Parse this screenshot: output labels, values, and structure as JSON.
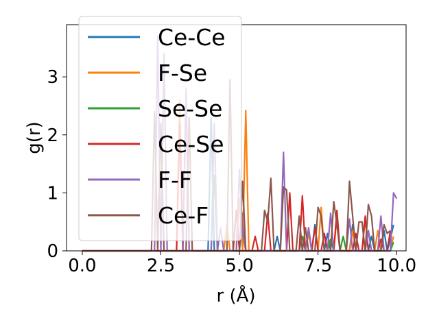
{
  "chart_data": {
    "type": "line",
    "xlabel": "r (Å)",
    "ylabel": "g(r)",
    "xlim": [
      -0.5,
      10.3
    ],
    "ylim": [
      0,
      3.9
    ],
    "xticks": [
      "0.0",
      "2.5",
      "5.0",
      "7.5",
      "10.0"
    ],
    "yticks": [
      "0",
      "1",
      "2",
      "3"
    ],
    "legend_position": "upper-left",
    "series": [
      {
        "name": "Ce-Ce",
        "color": "#1f77b4",
        "points": [
          [
            0,
            0
          ],
          [
            4.0,
            0
          ],
          [
            4.1,
            2.3
          ],
          [
            4.2,
            0
          ],
          [
            5.0,
            0
          ],
          [
            5.1,
            0.65
          ],
          [
            5.2,
            0
          ],
          [
            6.1,
            0
          ],
          [
            6.2,
            0.25
          ],
          [
            6.3,
            0
          ],
          [
            7.3,
            0
          ],
          [
            7.4,
            0.45
          ],
          [
            7.5,
            0
          ],
          [
            7.7,
            0
          ],
          [
            7.8,
            0.3
          ],
          [
            7.9,
            0
          ],
          [
            8.5,
            0
          ],
          [
            8.6,
            0.45
          ],
          [
            8.7,
            0
          ],
          [
            9.1,
            0
          ],
          [
            9.2,
            0.25
          ],
          [
            9.3,
            0
          ],
          [
            9.5,
            0
          ],
          [
            9.6,
            0.35
          ],
          [
            9.7,
            0
          ],
          [
            9.8,
            0.2
          ],
          [
            9.9,
            0.45
          ]
        ]
      },
      {
        "name": "F-Se",
        "color": "#ff7f0e",
        "points": [
          [
            0,
            0
          ],
          [
            3.0,
            0
          ],
          [
            3.1,
            2.6
          ],
          [
            3.2,
            0
          ],
          [
            3.3,
            2.8
          ],
          [
            3.4,
            0
          ],
          [
            4.5,
            0
          ],
          [
            4.6,
            0.45
          ],
          [
            4.7,
            0
          ],
          [
            4.9,
            0
          ],
          [
            5.0,
            0.9
          ],
          [
            5.1,
            0
          ],
          [
            5.2,
            2.42
          ],
          [
            5.3,
            0
          ],
          [
            7.1,
            0
          ],
          [
            7.2,
            0.3
          ],
          [
            7.3,
            0
          ],
          [
            7.5,
            0
          ],
          [
            7.6,
            0.75
          ],
          [
            7.7,
            0
          ],
          [
            8.0,
            0
          ],
          [
            8.1,
            0.6
          ],
          [
            8.2,
            0
          ],
          [
            8.5,
            0
          ],
          [
            8.6,
            0.35
          ],
          [
            8.7,
            0
          ],
          [
            8.9,
            0
          ],
          [
            9.0,
            0.55
          ],
          [
            9.1,
            0
          ],
          [
            9.3,
            0
          ],
          [
            9.4,
            0.35
          ],
          [
            9.5,
            0
          ],
          [
            9.8,
            0
          ],
          [
            9.9,
            0.25
          ]
        ]
      },
      {
        "name": "Se-Se",
        "color": "#2ca02c",
        "points": [
          [
            0,
            0
          ],
          [
            4.1,
            0
          ],
          [
            4.2,
            1.3
          ],
          [
            4.3,
            0
          ],
          [
            6.9,
            0
          ],
          [
            7.0,
            0.25
          ],
          [
            7.1,
            0
          ],
          [
            7.8,
            0
          ],
          [
            7.9,
            0.2
          ],
          [
            8.0,
            0
          ],
          [
            8.2,
            0
          ],
          [
            8.3,
            0.25
          ],
          [
            8.4,
            0
          ],
          [
            9.0,
            0
          ],
          [
            9.1,
            0.35
          ],
          [
            9.2,
            0
          ],
          [
            9.8,
            0
          ],
          [
            9.9,
            0.15
          ]
        ]
      },
      {
        "name": "Ce-Se",
        "color": "#d62728",
        "points": [
          [
            0,
            0
          ],
          [
            3.0,
            0
          ],
          [
            3.1,
            2.2
          ],
          [
            3.2,
            0
          ],
          [
            4.8,
            0
          ],
          [
            4.9,
            0.7
          ],
          [
            5.0,
            0
          ],
          [
            5.4,
            0
          ],
          [
            5.5,
            0.25
          ],
          [
            5.6,
            0
          ],
          [
            5.8,
            0
          ],
          [
            5.9,
            0.65
          ],
          [
            6.0,
            0
          ],
          [
            6.5,
            0
          ],
          [
            6.6,
            1.0
          ],
          [
            6.7,
            0
          ],
          [
            6.9,
            0
          ],
          [
            7.0,
            0.95
          ],
          [
            7.1,
            0
          ],
          [
            7.3,
            0
          ],
          [
            7.4,
            0.4
          ],
          [
            7.5,
            0
          ],
          [
            7.6,
            0
          ],
          [
            7.7,
            0.3
          ],
          [
            7.8,
            0
          ],
          [
            8.0,
            0
          ],
          [
            8.1,
            0.7
          ],
          [
            8.2,
            0
          ],
          [
            8.6,
            0
          ],
          [
            8.7,
            0.3
          ],
          [
            8.8,
            0
          ],
          [
            8.9,
            0
          ],
          [
            9.0,
            0.6
          ],
          [
            9.1,
            0
          ],
          [
            9.4,
            0
          ],
          [
            9.5,
            0.2
          ],
          [
            9.6,
            0
          ],
          [
            9.7,
            0
          ],
          [
            9.8,
            0.35
          ]
        ]
      },
      {
        "name": "F-F",
        "color": "#9467bd",
        "points": [
          [
            0,
            0
          ],
          [
            2.3,
            0
          ],
          [
            2.4,
            3.7
          ],
          [
            2.5,
            0
          ],
          [
            2.6,
            3.4
          ],
          [
            2.7,
            0
          ],
          [
            3.2,
            0
          ],
          [
            3.3,
            2.7
          ],
          [
            3.4,
            0
          ],
          [
            4.1,
            0
          ],
          [
            4.2,
            2.2
          ],
          [
            4.3,
            0
          ],
          [
            4.4,
            0.4
          ],
          [
            4.5,
            0
          ],
          [
            4.9,
            0
          ],
          [
            5.0,
            1.4
          ],
          [
            5.1,
            0.3
          ],
          [
            5.2,
            0
          ],
          [
            6.3,
            0
          ],
          [
            6.4,
            1.7
          ],
          [
            6.5,
            0
          ],
          [
            7.1,
            0
          ],
          [
            7.2,
            0.4
          ],
          [
            7.3,
            0
          ],
          [
            7.8,
            0
          ],
          [
            7.9,
            0.65
          ],
          [
            8.0,
            0
          ],
          [
            8.4,
            0
          ],
          [
            8.5,
            0.55
          ],
          [
            8.6,
            0
          ],
          [
            9.0,
            0
          ],
          [
            9.1,
            0.35
          ],
          [
            9.2,
            0
          ],
          [
            9.4,
            0
          ],
          [
            9.5,
            0.6
          ],
          [
            9.6,
            0
          ],
          [
            9.8,
            0
          ],
          [
            9.9,
            1.0
          ],
          [
            10.0,
            0.9
          ]
        ]
      },
      {
        "name": "Ce-F",
        "color": "#8c564b",
        "points": [
          [
            0,
            0
          ],
          [
            2.2,
            0
          ],
          [
            2.3,
            2.4
          ],
          [
            2.4,
            0
          ],
          [
            2.5,
            2.2
          ],
          [
            2.6,
            0
          ],
          [
            3.3,
            0
          ],
          [
            3.4,
            2.3
          ],
          [
            3.5,
            0
          ],
          [
            4.6,
            0
          ],
          [
            4.7,
            2.95
          ],
          [
            4.8,
            0
          ],
          [
            5.0,
            0
          ],
          [
            5.1,
            1.2
          ],
          [
            5.2,
            0
          ],
          [
            5.7,
            0
          ],
          [
            5.8,
            0.7
          ],
          [
            5.9,
            0.5
          ],
          [
            6.0,
            1.25
          ],
          [
            6.1,
            0
          ],
          [
            6.3,
            0
          ],
          [
            6.4,
            1.1
          ],
          [
            6.5,
            1.05
          ],
          [
            6.6,
            0
          ],
          [
            6.8,
            0
          ],
          [
            6.9,
            0.6
          ],
          [
            7.0,
            0
          ],
          [
            7.1,
            0.4
          ],
          [
            7.2,
            0
          ],
          [
            7.4,
            0
          ],
          [
            7.5,
            0.75
          ],
          [
            7.6,
            0.6
          ],
          [
            7.7,
            0
          ],
          [
            7.9,
            0
          ],
          [
            8.0,
            0.85
          ],
          [
            8.1,
            0.45
          ],
          [
            8.2,
            0
          ],
          [
            8.4,
            0
          ],
          [
            8.5,
            1.2
          ],
          [
            8.6,
            0.6
          ],
          [
            8.7,
            0
          ],
          [
            8.8,
            0.5
          ],
          [
            8.9,
            0.5
          ],
          [
            9.0,
            0
          ],
          [
            9.1,
            0.8
          ],
          [
            9.2,
            0.6
          ],
          [
            9.3,
            0
          ],
          [
            9.5,
            0
          ],
          [
            9.6,
            0.45
          ],
          [
            9.7,
            0.3
          ],
          [
            9.8,
            0.35
          ]
        ]
      }
    ]
  }
}
